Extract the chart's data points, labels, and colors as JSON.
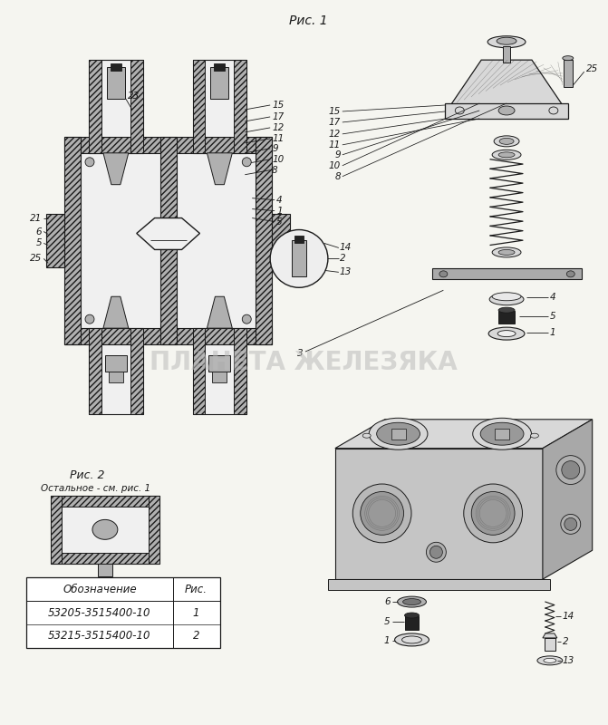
{
  "background_color": "#f5f5f0",
  "fig_width": 6.71,
  "fig_height": 8.0,
  "dpi": 100,
  "watermark_text": "ПЛАНЕТА ЖЕЛЕЗЯКА",
  "ris1_label": "Рис. 1",
  "ris2_label": "Рис. 2",
  "ris2_sublabel": "Остальное - см. рис. 1",
  "table_header": [
    "Обозначение",
    "Рис."
  ],
  "table_rows": [
    [
      "53205-3515400-10",
      "1"
    ],
    [
      "53215-3515400-10",
      "2"
    ]
  ],
  "line_color": "#1a1a1a",
  "hatch_color": "#333333",
  "metal_light": "#d8d8d8",
  "metal_mid": "#b0b0b0",
  "metal_dark": "#888888",
  "black_part": "#222222",
  "white_inner": "#f0f0f0"
}
